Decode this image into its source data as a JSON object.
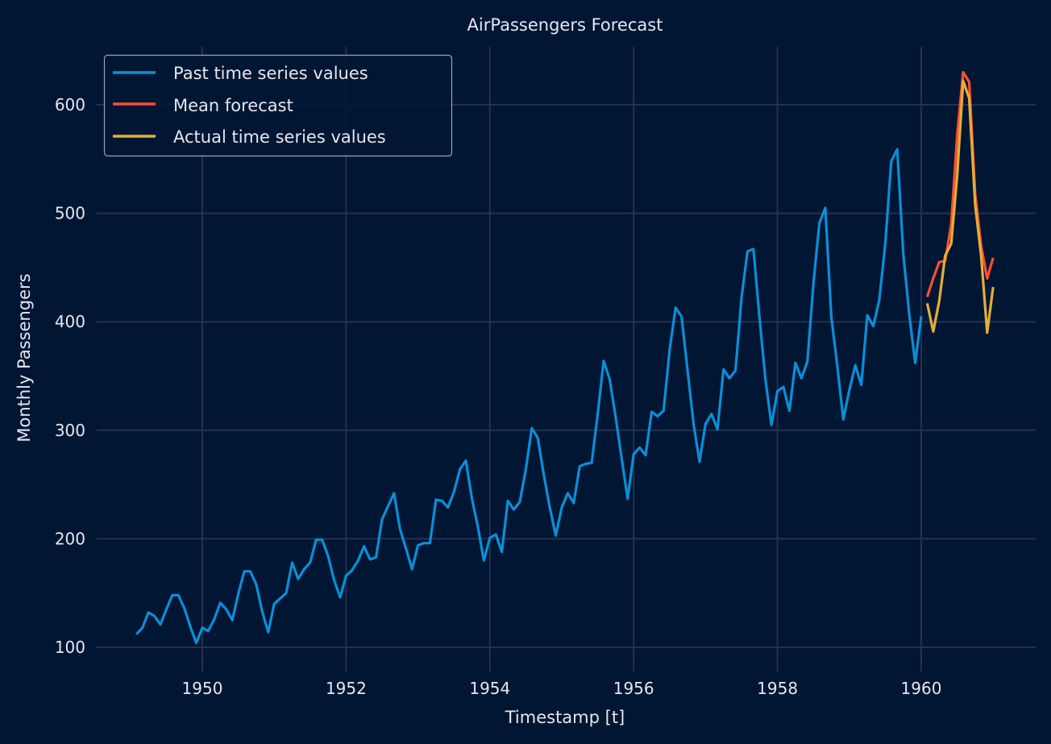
{
  "chart_data": {
    "type": "line",
    "title": "AirPassengers Forecast",
    "xlabel": "Timestamp [t]",
    "ylabel": "Monthly Passengers",
    "xlim": [
      1948.6,
      1961.65
    ],
    "ylim": [
      77,
      657
    ],
    "xticks": [
      1950,
      1952,
      1954,
      1956,
      1958,
      1960
    ],
    "yticks": [
      100,
      200,
      300,
      400,
      500,
      600
    ],
    "grid": true,
    "legend_position": "top-left",
    "series": [
      {
        "name": "Past time series values",
        "color": "#0a8fd6",
        "start": 1949.0833,
        "step": 0.08333,
        "values": [
          112,
          118,
          132,
          129,
          121,
          135,
          148,
          148,
          136,
          119,
          104,
          118,
          115,
          126,
          141,
          135,
          125,
          149,
          170,
          170,
          158,
          133,
          114,
          140,
          145,
          150,
          178,
          163,
          172,
          178,
          199,
          199,
          184,
          162,
          146,
          166,
          171,
          180,
          193,
          181,
          183,
          218,
          230,
          242,
          209,
          191,
          172,
          194,
          196,
          196,
          236,
          235,
          229,
          243,
          264,
          272,
          237,
          211,
          180,
          201,
          204,
          188,
          235,
          227,
          234,
          264,
          302,
          293,
          259,
          229,
          203,
          229,
          242,
          233,
          267,
          269,
          270,
          315,
          364,
          347,
          312,
          274,
          237,
          278,
          284,
          277,
          317,
          313,
          318,
          374,
          413,
          405,
          355,
          306,
          271,
          306,
          315,
          301,
          356,
          348,
          355,
          422,
          465,
          467,
          404,
          347,
          305,
          336,
          340,
          318,
          362,
          348,
          363,
          435,
          491,
          505,
          404,
          359,
          310,
          337,
          360,
          342,
          406,
          396,
          420,
          472,
          548,
          559,
          463,
          407,
          362,
          405
        ]
      },
      {
        "name": "Mean forecast",
        "color": "#fc4f30",
        "start": 1960.0833,
        "step": 0.08333,
        "values": [
          423,
          440,
          455,
          456,
          490,
          572,
          630,
          621,
          518,
          470,
          440,
          459
        ]
      },
      {
        "name": "Actual time series values",
        "color": "#e5ae38",
        "start": 1960.0833,
        "step": 0.08333,
        "values": [
          417,
          391,
          419,
          461,
          472,
          535,
          622,
          606,
          508,
          461,
          390,
          432
        ]
      }
    ]
  }
}
